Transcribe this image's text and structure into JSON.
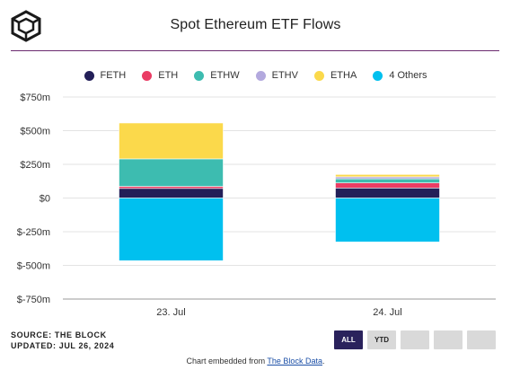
{
  "title": "Spot Ethereum ETF Flows",
  "legend": [
    {
      "label": "FETH",
      "color": "#231f58"
    },
    {
      "label": "ETH",
      "color": "#ea3c64"
    },
    {
      "label": "ETHW",
      "color": "#3dbcb0"
    },
    {
      "label": "ETHV",
      "color": "#b3a9de"
    },
    {
      "label": "ETHA",
      "color": "#fbd94b"
    },
    {
      "label": "4 Others",
      "color": "#00c0ef"
    }
  ],
  "chart_data": {
    "type": "bar",
    "stacked": true,
    "categories": [
      "23. Jul",
      "24. Jul"
    ],
    "series": [
      {
        "name": "FETH",
        "color": "#231f58",
        "values": [
          71.3,
          74.5
        ]
      },
      {
        "name": "ETH",
        "color": "#ea3c64",
        "values": [
          15.0,
          38.0
        ]
      },
      {
        "name": "ETHW",
        "color": "#3dbcb0",
        "values": [
          204.2,
          29.8
        ]
      },
      {
        "name": "ETHV",
        "color": "#b3a9de",
        "values": [
          0,
          15.0
        ]
      },
      {
        "name": "ETHA",
        "color": "#fbd94b",
        "values": [
          266.5,
          17.4
        ]
      },
      {
        "name": "4 Others",
        "color": "#00c0ef",
        "values": [
          -465.3,
          -326.3
        ]
      }
    ],
    "ylim": [
      -750,
      750
    ],
    "yticks": [
      750,
      500,
      250,
      0,
      -250,
      -500,
      -750
    ],
    "ytick_labels": [
      "$750m",
      "$500m",
      "$250m",
      "$0",
      "$-250m",
      "$-500m",
      "$-750m"
    ],
    "xlabel": "",
    "ylabel": "",
    "grid": true,
    "legend_position": "top-center"
  },
  "source": {
    "line1": "SOURCE: THE BLOCK",
    "line2": "UPDATED: JUL 26, 2024"
  },
  "buttons": [
    {
      "label": "ALL",
      "active": true
    },
    {
      "label": "YTD",
      "active": false
    },
    {
      "label": "",
      "active": false
    },
    {
      "label": "",
      "active": false
    },
    {
      "label": "",
      "active": false
    }
  ],
  "footer": {
    "prefix": "Chart embedded from ",
    "link": "The Block Data",
    "suffix": "."
  }
}
